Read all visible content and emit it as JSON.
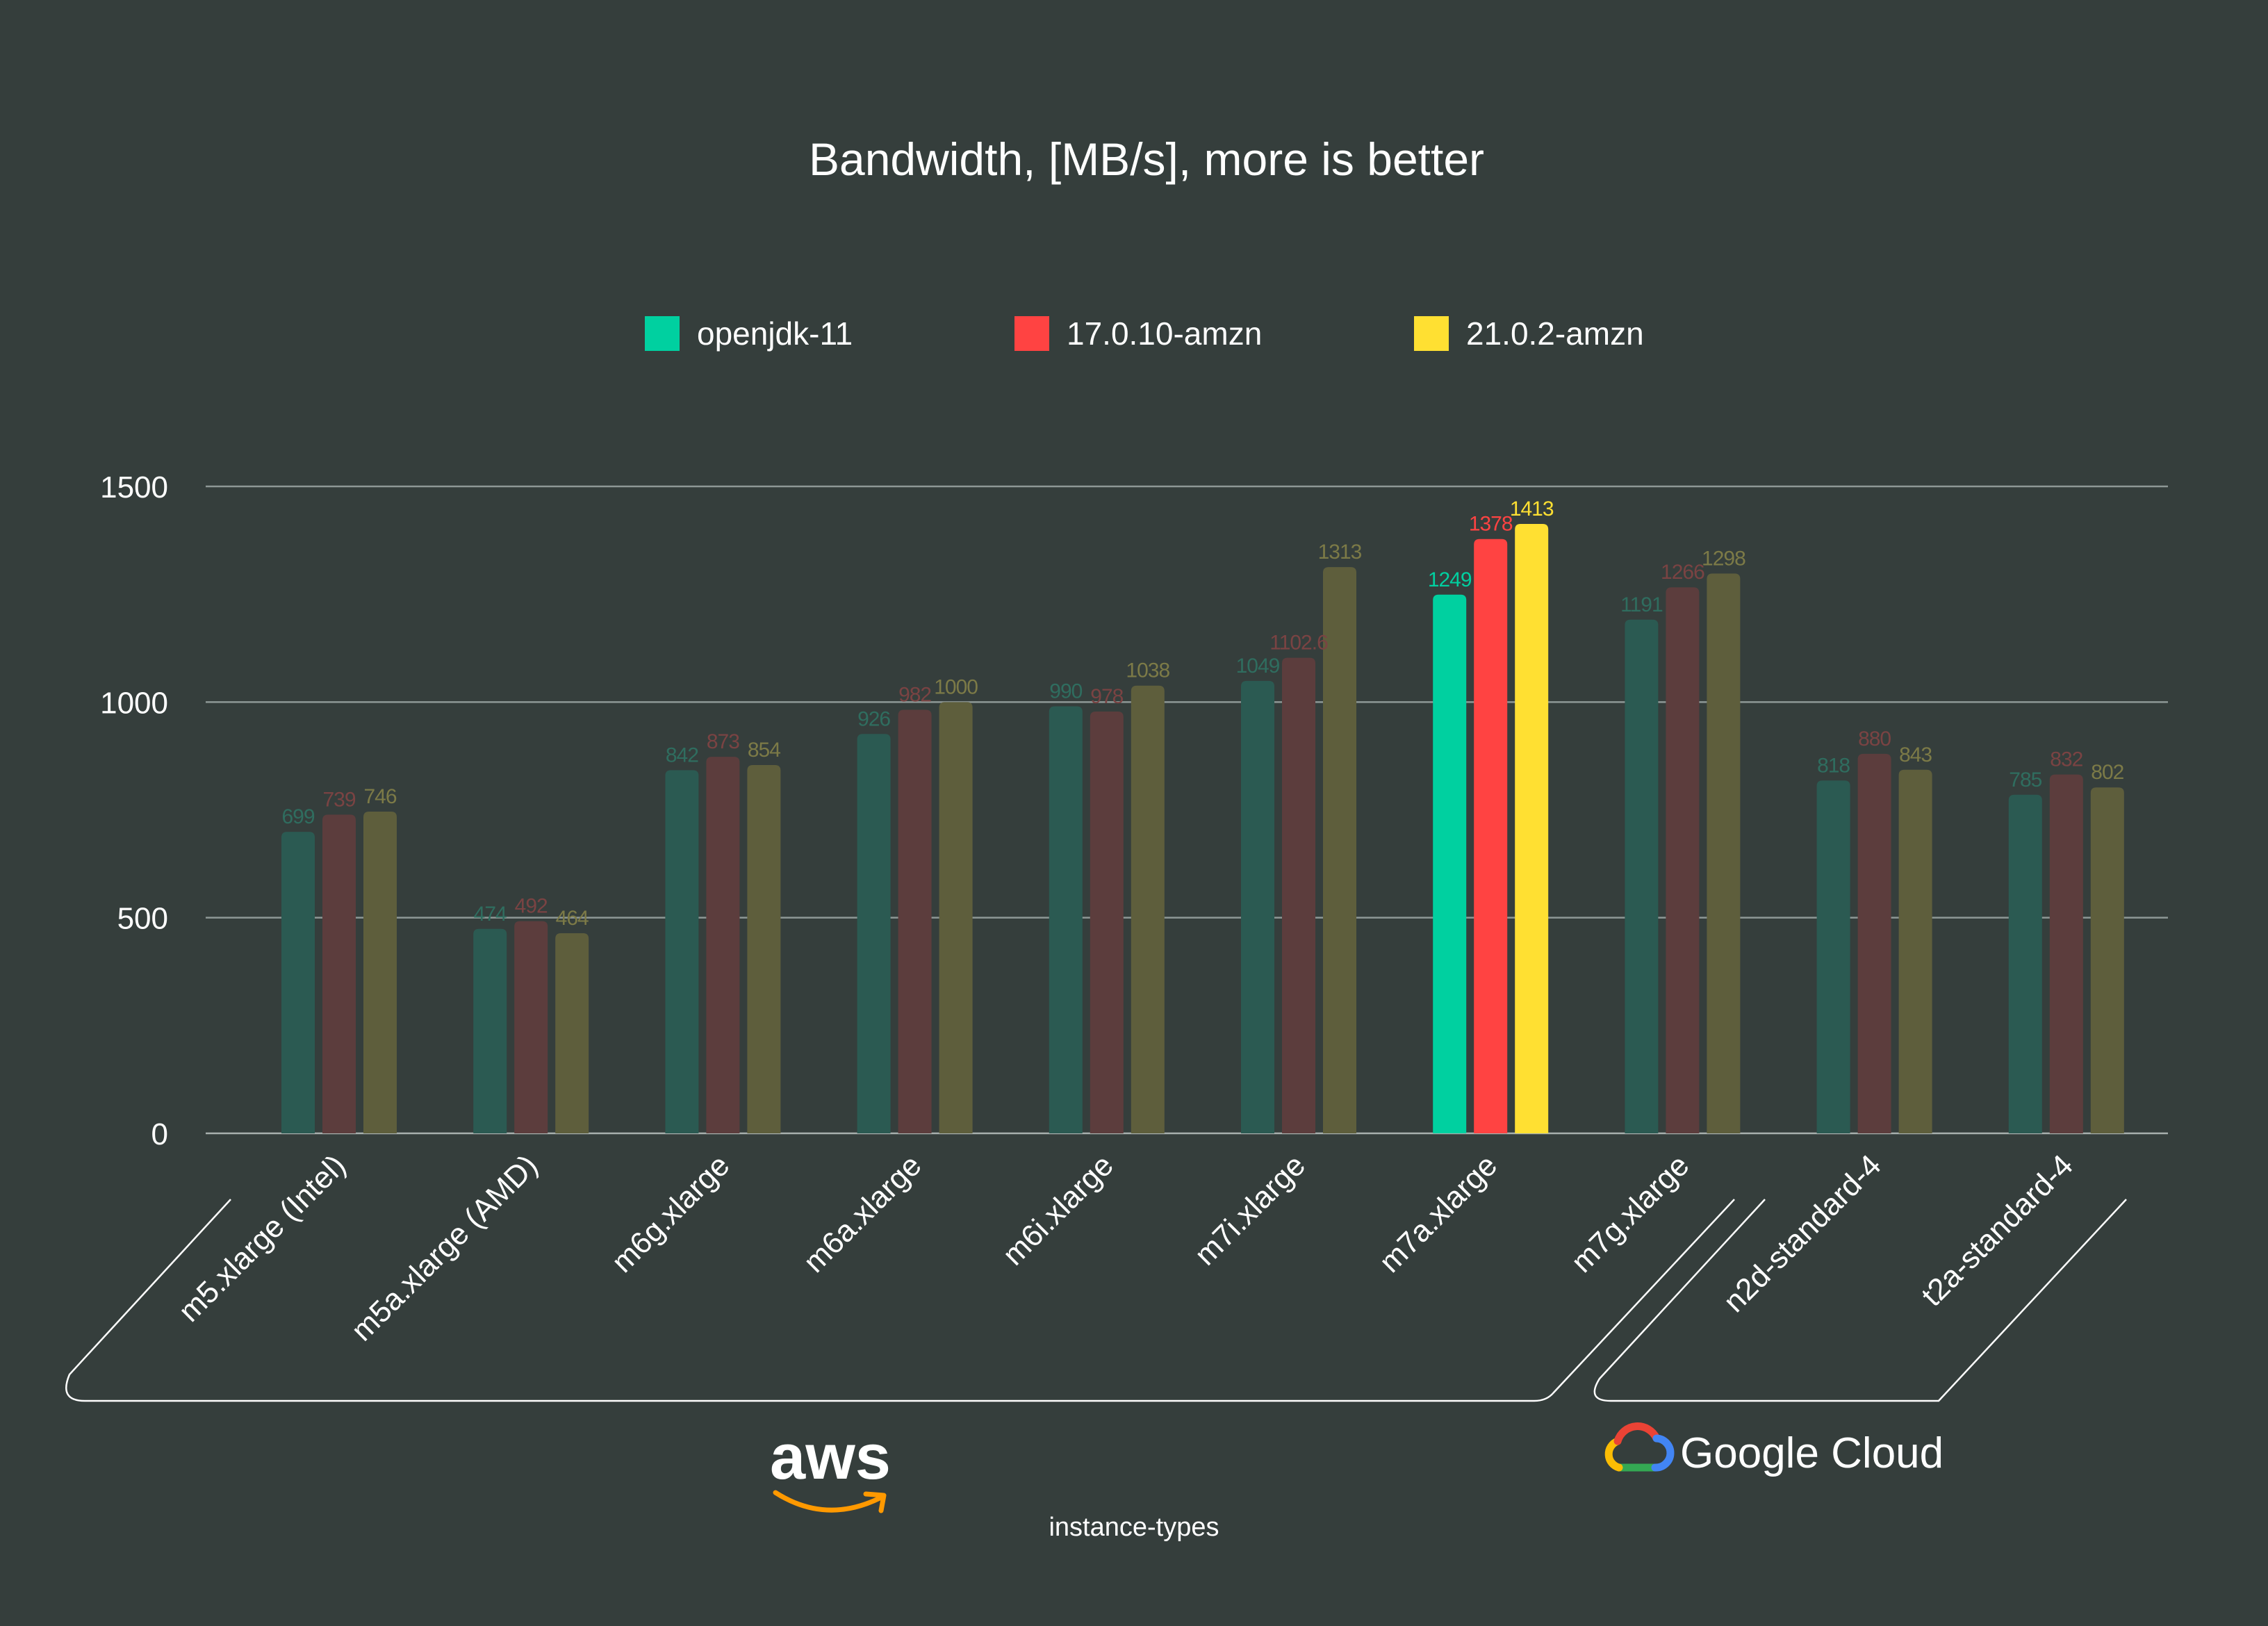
{
  "chart_data": {
    "type": "bar",
    "title": "Bandwidth, [MB/s], more is better",
    "xlabel": "instance-types",
    "ylabel": "",
    "ylim": [
      0,
      1500
    ],
    "yticks": [
      0,
      500,
      1000,
      1500
    ],
    "grid": true,
    "legend_position": "top-center",
    "categories": [
      "m5.xlarge (Intel)",
      "m5a.xlarge (AMD)",
      "m6g.xlarge",
      "m6a.xlarge",
      "m6i.xlarge",
      "m7i.xlarge",
      "m7a.xlarge",
      "m7g.xlarge",
      "n2d-standard-4",
      "t2a-standard-4"
    ],
    "highlighted_category": "m7a.xlarge",
    "series": [
      {
        "name": "openjdk-11",
        "color": "#00d0a0",
        "dim_color": "#2b5a52",
        "dim_text": "#2f6d5f",
        "values": [
          699,
          474,
          842,
          926,
          990,
          1049,
          1249,
          1191,
          818,
          785
        ],
        "labels": [
          "699",
          "474",
          "842",
          "926",
          "990",
          "1049",
          "1249",
          "1191",
          "818",
          "785"
        ]
      },
      {
        "name": "17.0.10-amzn",
        "color": "#ff4342",
        "dim_color": "#5c3d3d",
        "dim_text": "#7a4343",
        "values": [
          739,
          492,
          873,
          982,
          978,
          1102.6,
          1378,
          1266,
          880,
          832
        ],
        "labels": [
          "739",
          "492",
          "873",
          "982",
          "978",
          "1102.6",
          "1378",
          "1266",
          "880",
          "832"
        ]
      },
      {
        "name": "21.0.2-amzn",
        "color": "#ffe032",
        "dim_color": "#5e5e3c",
        "dim_text": "#7c7a47",
        "values": [
          746,
          464,
          854,
          1000,
          1038,
          1313,
          1413,
          1298,
          843,
          802
        ],
        "labels": [
          "746",
          "464",
          "854",
          "1000",
          "1038",
          "1313",
          "1413",
          "1298",
          "843",
          "802"
        ]
      }
    ],
    "groups": [
      {
        "name": "aws",
        "logo": "aws-logo",
        "from": 0,
        "to": 7
      },
      {
        "name": "Google Cloud",
        "logo": "google-cloud-logo",
        "from": 8,
        "to": 9
      }
    ]
  },
  "logos": {
    "aws_text": "aws",
    "google_cloud_text": "Google Cloud"
  }
}
